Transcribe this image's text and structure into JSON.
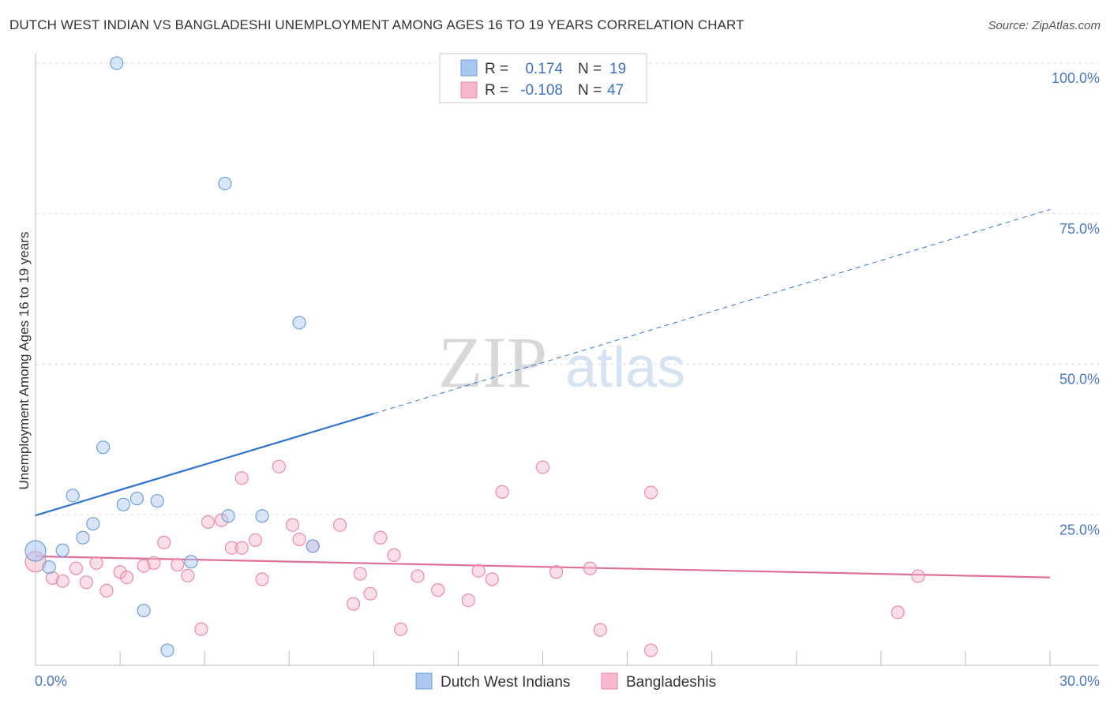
{
  "header": {
    "title": "DUTCH WEST INDIAN VS BANGLADESHI UNEMPLOYMENT AMONG AGES 16 TO 19 YEARS CORRELATION CHART",
    "source": "Source: ZipAtlas.com"
  },
  "watermark": {
    "zip": "ZIP",
    "atlas": "atlas"
  },
  "colors": {
    "blue_fill": "#a9c8f0",
    "blue_stroke": "#6f9fd8",
    "blue_line": "#2f72d0",
    "pink_fill": "#f7b8cb",
    "pink_stroke": "#e98aa8",
    "pink_line": "#e06f98",
    "tick_text": "#4a78c2",
    "grid": "#dddddd"
  },
  "chart_data": {
    "type": "scatter",
    "title": "DUTCH WEST INDIAN VS BANGLADESHI UNEMPLOYMENT AMONG AGES 16 TO 19 YEARS CORRELATION CHART",
    "xlabel": "",
    "ylabel": "Unemployment Among Ages 16 to 19 years",
    "xlim": [
      0,
      30
    ],
    "ylim": [
      0,
      100
    ],
    "x_tick_labels": {
      "left": "0.0%",
      "right": "30.0%"
    },
    "y_ticks": [
      {
        "value": 25,
        "label": "25.0%"
      },
      {
        "value": 50,
        "label": "50.0%"
      },
      {
        "value": 75,
        "label": "75.0%"
      },
      {
        "value": 100,
        "label": "100.0%"
      }
    ],
    "legend": {
      "entries": [
        {
          "r_label": "R =",
          "r_value": "0.174",
          "n_label": "N =",
          "n_value": "19"
        },
        {
          "r_label": "R =",
          "r_value": "-0.108",
          "n_label": "N =",
          "n_value": "47"
        }
      ]
    },
    "series": [
      {
        "name": "Dutch West Indians",
        "color": "#a9c8f0",
        "points": [
          [
            0.0,
            19.0,
            "big"
          ],
          [
            0.4,
            16.3
          ],
          [
            0.8,
            19.1
          ],
          [
            1.1,
            28.2
          ],
          [
            1.4,
            21.2
          ],
          [
            1.7,
            23.5
          ],
          [
            2.0,
            36.2
          ],
          [
            2.4,
            100.0
          ],
          [
            2.6,
            26.7
          ],
          [
            3.0,
            27.7
          ],
          [
            3.2,
            9.1
          ],
          [
            3.6,
            27.3
          ],
          [
            3.9,
            2.5
          ],
          [
            4.6,
            17.2
          ],
          [
            5.6,
            80.0
          ],
          [
            5.7,
            24.8
          ],
          [
            6.7,
            24.8
          ],
          [
            7.8,
            56.9
          ],
          [
            8.2,
            19.8
          ]
        ],
        "trend": {
          "x0": 0.0,
          "y0": 24.9,
          "x1": 10.0,
          "y1": 41.8,
          "x_end": 30.0,
          "y_end": 75.7
        }
      },
      {
        "name": "Bangladeshis",
        "color": "#f7b8cb",
        "points": [
          [
            0.0,
            17.2,
            "big"
          ],
          [
            0.5,
            14.5
          ],
          [
            0.8,
            14.0
          ],
          [
            1.2,
            16.1
          ],
          [
            1.5,
            13.8
          ],
          [
            1.8,
            17.0
          ],
          [
            2.1,
            12.4
          ],
          [
            2.5,
            15.5
          ],
          [
            2.7,
            14.6
          ],
          [
            3.2,
            16.5
          ],
          [
            3.5,
            17.0
          ],
          [
            3.8,
            20.4
          ],
          [
            4.2,
            16.7
          ],
          [
            4.5,
            14.9
          ],
          [
            4.9,
            6.0
          ],
          [
            5.1,
            23.8
          ],
          [
            5.5,
            24.1
          ],
          [
            5.8,
            19.5
          ],
          [
            6.1,
            31.1
          ],
          [
            6.1,
            19.5
          ],
          [
            6.5,
            20.8
          ],
          [
            6.7,
            14.3
          ],
          [
            7.2,
            33.0
          ],
          [
            7.6,
            23.3
          ],
          [
            7.8,
            20.9
          ],
          [
            8.2,
            19.8
          ],
          [
            9.0,
            23.3
          ],
          [
            9.4,
            10.2
          ],
          [
            9.6,
            15.2
          ],
          [
            9.9,
            11.9
          ],
          [
            10.2,
            21.2
          ],
          [
            10.6,
            18.3
          ],
          [
            10.8,
            6.0
          ],
          [
            11.3,
            14.8
          ],
          [
            11.9,
            12.5
          ],
          [
            12.8,
            10.8
          ],
          [
            13.1,
            15.7
          ],
          [
            13.5,
            14.3
          ],
          [
            13.8,
            28.8
          ],
          [
            15.0,
            32.9
          ],
          [
            15.4,
            15.5
          ],
          [
            16.4,
            16.1
          ],
          [
            16.7,
            5.9
          ],
          [
            18.2,
            28.7
          ],
          [
            18.2,
            2.5
          ],
          [
            25.5,
            8.8
          ],
          [
            26.1,
            14.8
          ]
        ],
        "trend": {
          "x0": 0.0,
          "y0": 18.1,
          "x1": 30.0,
          "y1": 14.6
        }
      }
    ]
  }
}
